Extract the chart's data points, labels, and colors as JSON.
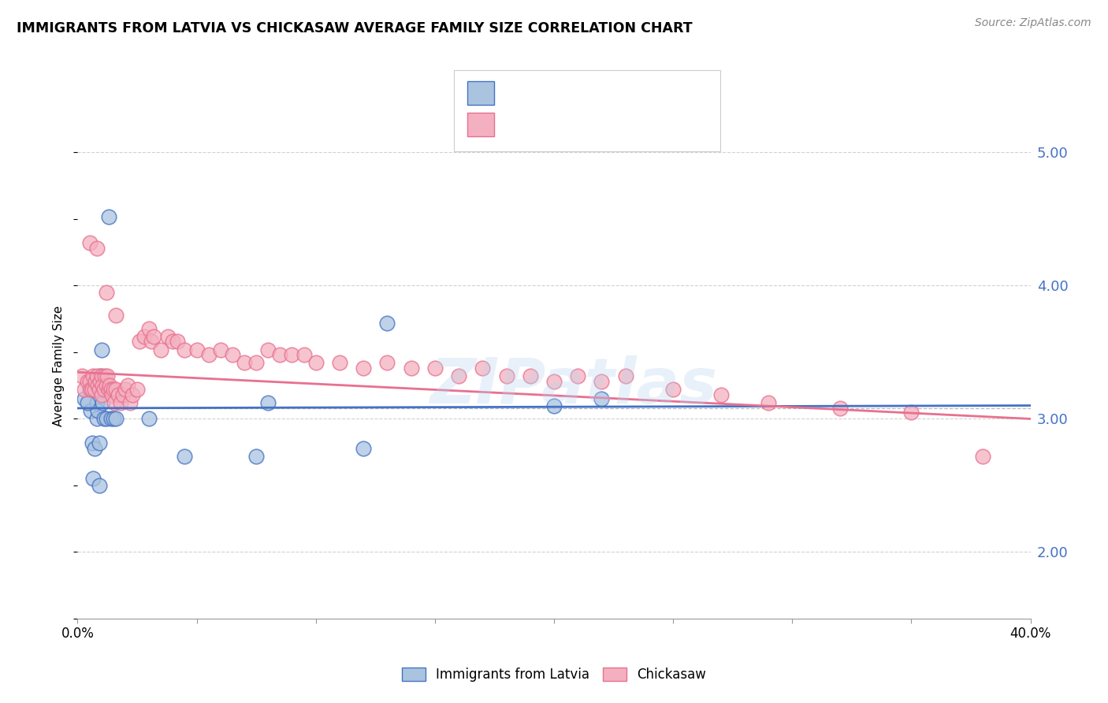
{
  "title": "IMMIGRANTS FROM LATVIA VS CHICKASAW AVERAGE FAMILY SIZE CORRELATION CHART",
  "source": "Source: ZipAtlas.com",
  "ylabel": "Average Family Size",
  "xmin": 0.0,
  "xmax": 40.0,
  "ymin": 1.5,
  "ymax": 5.3,
  "yticks": [
    2.0,
    3.0,
    4.0,
    5.0
  ],
  "blue_color": "#aac4e0",
  "pink_color": "#f4b0c0",
  "line_blue": "#4472c4",
  "line_pink": "#e87090",
  "watermark": "ZIPatlas",
  "blue_x": [
    0.3,
    0.5,
    0.55,
    0.6,
    0.7,
    0.75,
    0.8,
    0.82,
    0.85,
    0.9,
    0.95,
    1.0,
    1.05,
    1.1,
    1.2,
    1.3,
    1.4,
    1.5,
    1.6,
    3.0,
    4.5,
    7.5,
    8.0,
    12.0,
    13.0,
    0.4,
    0.65,
    0.9,
    20.0,
    22.0
  ],
  "blue_y": [
    3.15,
    3.22,
    3.06,
    2.82,
    2.78,
    3.25,
    3.12,
    3.0,
    3.06,
    2.82,
    3.32,
    3.52,
    3.12,
    3.0,
    3.0,
    4.52,
    3.0,
    3.0,
    3.0,
    3.0,
    2.72,
    2.72,
    3.12,
    2.78,
    3.72,
    3.12,
    2.55,
    2.5,
    3.1,
    3.15
  ],
  "pink_x": [
    0.2,
    0.3,
    0.4,
    0.5,
    0.55,
    0.6,
    0.65,
    0.7,
    0.75,
    0.8,
    0.85,
    0.9,
    0.95,
    1.0,
    1.02,
    1.05,
    1.1,
    1.15,
    1.2,
    1.25,
    1.3,
    1.35,
    1.4,
    1.45,
    1.5,
    1.55,
    1.6,
    1.7,
    1.8,
    1.9,
    2.0,
    2.1,
    2.2,
    2.3,
    2.5,
    2.6,
    2.8,
    3.0,
    3.1,
    3.2,
    3.5,
    3.8,
    4.0,
    4.2,
    4.5,
    5.0,
    5.5,
    6.0,
    6.5,
    7.0,
    7.5,
    8.0,
    8.5,
    9.0,
    9.5,
    10.0,
    11.0,
    12.0,
    13.0,
    14.0,
    15.0,
    16.0,
    17.0,
    18.0,
    19.0,
    20.0,
    21.0,
    22.0,
    23.0,
    25.0,
    27.0,
    29.0,
    32.0,
    35.0,
    38.0,
    0.5,
    0.8,
    1.2,
    1.6
  ],
  "pink_y": [
    3.32,
    3.22,
    3.28,
    3.28,
    3.22,
    3.22,
    3.32,
    3.22,
    3.28,
    3.32,
    3.25,
    3.22,
    3.28,
    3.32,
    3.18,
    3.25,
    3.22,
    3.32,
    3.25,
    3.32,
    3.22,
    3.25,
    3.22,
    3.18,
    3.22,
    3.12,
    3.22,
    3.18,
    3.12,
    3.18,
    3.22,
    3.25,
    3.12,
    3.18,
    3.22,
    3.58,
    3.62,
    3.68,
    3.58,
    3.62,
    3.52,
    3.62,
    3.58,
    3.58,
    3.52,
    3.52,
    3.48,
    3.52,
    3.48,
    3.42,
    3.42,
    3.52,
    3.48,
    3.48,
    3.48,
    3.42,
    3.42,
    3.38,
    3.42,
    3.38,
    3.38,
    3.32,
    3.38,
    3.32,
    3.32,
    3.28,
    3.32,
    3.28,
    3.32,
    3.22,
    3.18,
    3.12,
    3.08,
    3.05,
    2.72,
    4.32,
    4.28,
    3.95,
    3.78
  ],
  "blue_line_x": [
    0.0,
    40.0
  ],
  "blue_line_y": [
    3.08,
    3.1
  ],
  "pink_line_x": [
    0.0,
    40.0
  ],
  "pink_line_y": [
    3.35,
    3.0
  ]
}
